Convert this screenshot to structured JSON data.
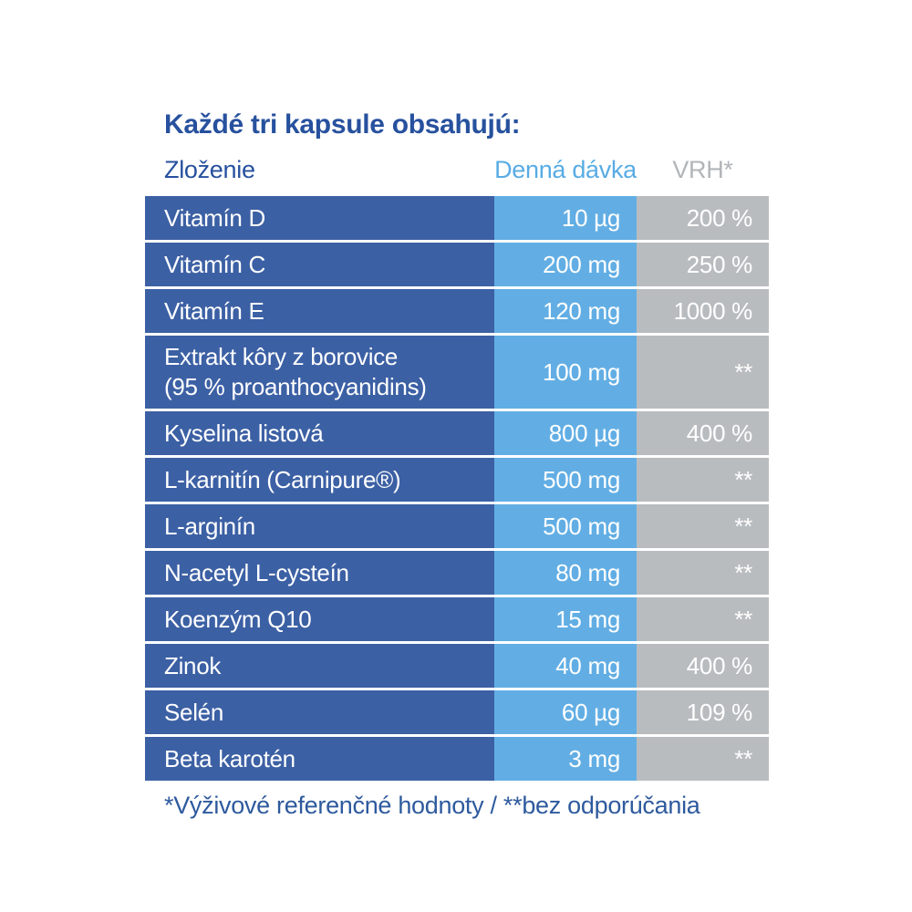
{
  "title": "Každé tri kapsule obsahujú:",
  "table": {
    "headers": {
      "ingredient": "Zloženie",
      "dose": "Denná dávka",
      "vrh": "VRH*"
    },
    "rows": [
      {
        "name": "Vitamín D",
        "dose": "10 µg",
        "vrh": "200 %"
      },
      {
        "name": "Vitamín C",
        "dose": "200 mg",
        "vrh": "250 %"
      },
      {
        "name": "Vitamín E",
        "dose": "120 mg",
        "vrh": "1000 %"
      },
      {
        "name": "Extrakt kôry z borovice\n(95 % proanthocyanidins)",
        "dose": "100 mg",
        "vrh": "**",
        "tall": true
      },
      {
        "name": "Kyselina listová",
        "dose": "800 µg",
        "vrh": "400 %"
      },
      {
        "name": "L-karnitín (Carnipure®)",
        "dose": "500 mg",
        "vrh": "**"
      },
      {
        "name": "L-arginín",
        "dose": "500 mg",
        "vrh": "**"
      },
      {
        "name": "N-acetyl L-cysteín",
        "dose": "80 mg",
        "vrh": "**"
      },
      {
        "name": "Koenzým Q10",
        "dose": "15 mg",
        "vrh": "**"
      },
      {
        "name": "Zinok",
        "dose": "40 mg",
        "vrh": "400 %"
      },
      {
        "name": "Selén",
        "dose": "60 µg",
        "vrh": "109 %"
      },
      {
        "name": "Beta karotén",
        "dose": "3 mg",
        "vrh": "**"
      }
    ]
  },
  "footnote": "*Výživové referenčné hodnoty / **bez odporúčania",
  "colors": {
    "title_text": "#27519e",
    "header_dose_text": "#58ace4",
    "header_vrh_text": "#b2b5b8",
    "row_name_bg": "#3c60a4",
    "row_dose_bg": "#62aee4",
    "row_vrh_bg": "#b9bcbf",
    "row_text": "#ffffff",
    "footnote_text": "#2e5a9e"
  }
}
